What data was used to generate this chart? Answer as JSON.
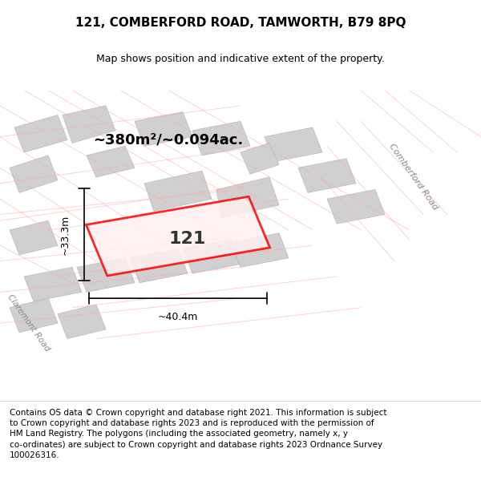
{
  "title": "121, COMBERFORD ROAD, TAMWORTH, B79 8PQ",
  "subtitle": "Map shows position and indicative extent of the property.",
  "footer_line1": "Contains OS data © Crown copyright and database right 2021. This information is subject",
  "footer_line2": "to Crown copyright and database rights 2023 and is reproduced with the permission of",
  "footer_line3": "HM Land Registry. The polygons (including the associated geometry, namely x, y",
  "footer_line4": "co-ordinates) are subject to Crown copyright and database rights 2023 Ordnance Survey",
  "footer_line5": "100026316.",
  "bg_color": "#f5f5f5",
  "map_bg": "#f0f0f0",
  "road_label_comberford": "Comberford Road",
  "road_label_claremont": "Claremont Road",
  "area_label": "~380m²/~0.094ac.",
  "plot_label": "121",
  "dim_width": "~40.4m",
  "dim_height": "~33.3m",
  "red_color": "#ff0000",
  "light_red": "#ffaaaa",
  "gray_block": "#c8c8c8",
  "title_fontsize": 11,
  "subtitle_fontsize": 9,
  "footer_fontsize": 7.5
}
